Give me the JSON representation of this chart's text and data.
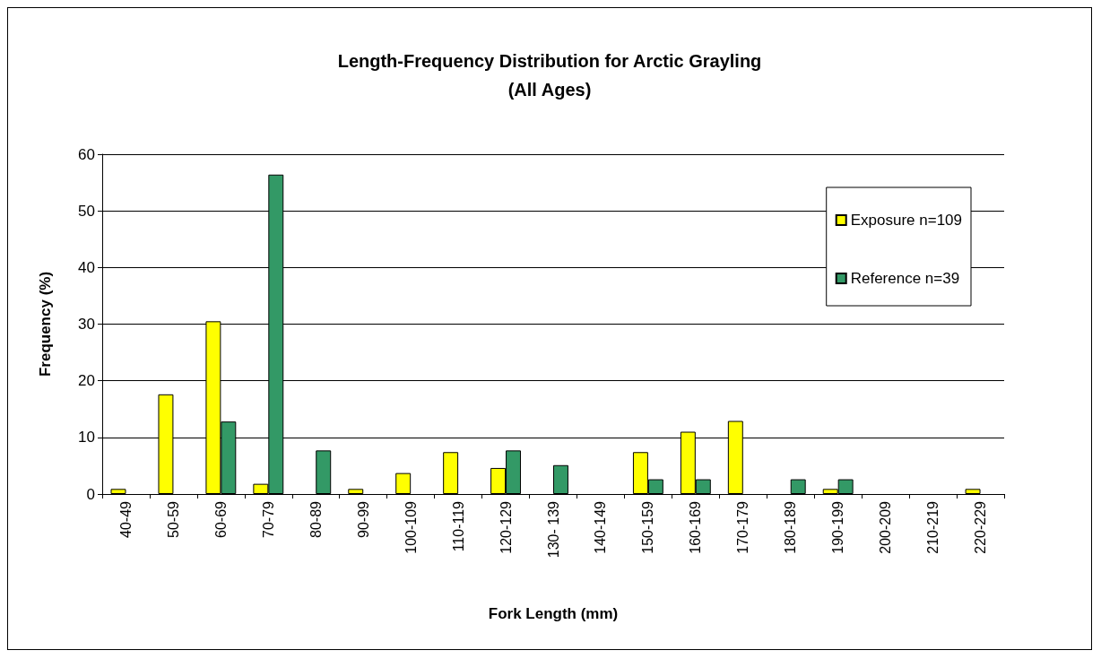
{
  "chart_data": {
    "type": "bar",
    "title": "Length-Frequency Distribution for Arctic Grayling",
    "subtitle": "(All Ages)",
    "xlabel": "Fork Length (mm)",
    "ylabel": "Frequency (%)",
    "categories": [
      "40-49",
      "50-59",
      "60-69",
      "70-79",
      "80-89",
      "90-99",
      "100-109",
      "110-119",
      "120-129",
      "130- 139",
      "140-149",
      "150-159",
      "160-169",
      "170-179",
      "180-189",
      "190-199",
      "200-209",
      "210-219",
      "220-229"
    ],
    "series": [
      {
        "name": "Exposure n=109",
        "color": "#ffff00",
        "values": [
          0.9,
          17.6,
          30.5,
          1.8,
          0,
          0.9,
          3.7,
          7.4,
          4.6,
          0,
          0,
          7.4,
          11.0,
          12.9,
          0,
          0.9,
          0,
          0,
          0.9
        ]
      },
      {
        "name": "Reference n=39",
        "color": "#339966",
        "values": [
          0,
          0,
          12.8,
          56.4,
          7.7,
          0,
          0,
          0,
          7.7,
          5.1,
          0,
          2.6,
          2.6,
          0,
          2.6,
          2.6,
          0,
          0,
          0
        ]
      }
    ],
    "ylim": [
      0,
      60
    ],
    "yticks": [
      0,
      10,
      20,
      30,
      40,
      50,
      60
    ],
    "grid": "y",
    "legend": "top right"
  }
}
